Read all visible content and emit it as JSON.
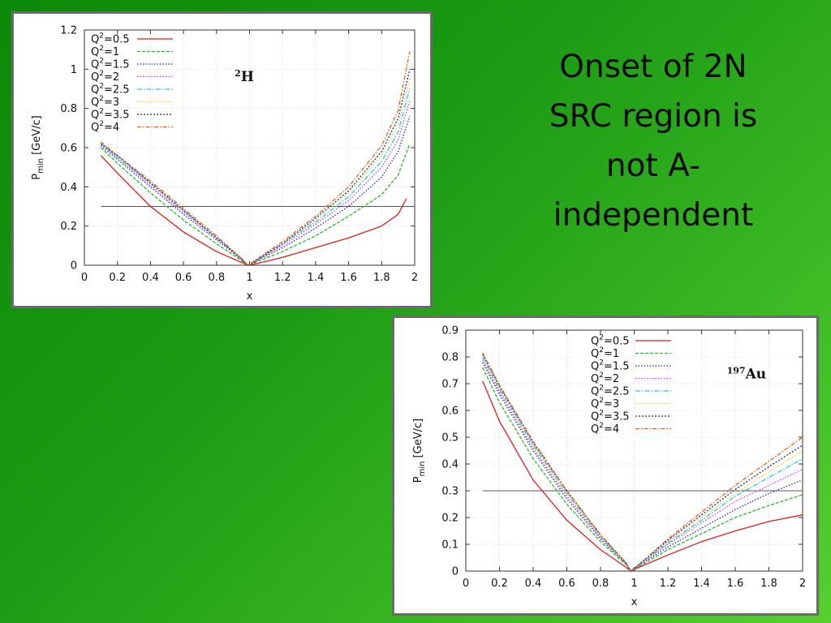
{
  "slide": {
    "title_lines": [
      "Onset of 2N",
      "SRC region is",
      "not  A-",
      "independent"
    ],
    "background_colors": [
      "#0a8a08",
      "#57cf2f"
    ],
    "title_color": "#0a0a0a"
  },
  "chart_data": [
    {
      "type": "line",
      "title": "",
      "xlabel": "x",
      "ylabel": "P",
      "ylabel_sub": "min",
      "ylabel_unit": " [GeV/c]",
      "xlim": [
        0,
        2
      ],
      "ylim": [
        0,
        1.2
      ],
      "xticks": [
        0,
        0.2,
        0.4,
        0.6,
        0.8,
        1,
        1.2,
        1.4,
        1.6,
        1.8,
        2
      ],
      "yticks": [
        0,
        0.2,
        0.4,
        0.6,
        0.8,
        1,
        1.2
      ],
      "grid": true,
      "legend_position": "top-left",
      "annotation": {
        "sup": "2",
        "text": "H",
        "x": 0.91,
        "y": 0.94
      },
      "reference_line": {
        "y": 0.3,
        "x_range": [
          0.1,
          2
        ]
      },
      "series": [
        {
          "name": "Q²=0.5",
          "color": "#e41a1c",
          "dash": "",
          "x": [
            0.1,
            0.2,
            0.4,
            0.6,
            0.8,
            0.95,
            0.99,
            1.05,
            1.2,
            1.4,
            1.6,
            1.8,
            1.9,
            1.95
          ],
          "y": [
            0.56,
            0.47,
            0.3,
            0.17,
            0.07,
            0.015,
            0,
            0.01,
            0.04,
            0.09,
            0.14,
            0.2,
            0.26,
            0.34
          ]
        },
        {
          "name": "Q²=1",
          "color": "#22bb22",
          "dash": "4,2",
          "x": [
            0.1,
            0.2,
            0.4,
            0.6,
            0.8,
            0.95,
            0.99,
            1.05,
            1.2,
            1.4,
            1.6,
            1.8,
            1.9,
            1.97
          ],
          "y": [
            0.6,
            0.52,
            0.37,
            0.23,
            0.11,
            0.025,
            0,
            0.02,
            0.07,
            0.15,
            0.25,
            0.36,
            0.46,
            0.62
          ]
        },
        {
          "name": "Q²=1.5",
          "color": "#2222cc",
          "dash": "1.5,2",
          "x": [
            0.1,
            0.2,
            0.4,
            0.6,
            0.8,
            0.95,
            0.99,
            1.05,
            1.2,
            1.4,
            1.6,
            1.8,
            1.9,
            1.97
          ],
          "y": [
            0.61,
            0.54,
            0.4,
            0.26,
            0.13,
            0.03,
            0,
            0.025,
            0.09,
            0.19,
            0.3,
            0.45,
            0.58,
            0.76
          ]
        },
        {
          "name": "Q²=2",
          "color": "#dd33dd",
          "dash": "1.5,2",
          "x": [
            0.1,
            0.2,
            0.4,
            0.6,
            0.8,
            0.95,
            0.99,
            1.05,
            1.2,
            1.4,
            1.6,
            1.8,
            1.9,
            1.97
          ],
          "y": [
            0.62,
            0.55,
            0.41,
            0.27,
            0.14,
            0.035,
            0,
            0.03,
            0.1,
            0.21,
            0.33,
            0.5,
            0.64,
            0.84
          ]
        },
        {
          "name": "Q²=2.5",
          "color": "#22c8e6",
          "dash": "6,2,1.5,2",
          "x": [
            0.1,
            0.2,
            0.4,
            0.6,
            0.8,
            0.95,
            0.99,
            1.05,
            1.2,
            1.4,
            1.6,
            1.8,
            1.9,
            1.97
          ],
          "y": [
            0.62,
            0.55,
            0.42,
            0.28,
            0.14,
            0.035,
            0,
            0.03,
            0.11,
            0.22,
            0.35,
            0.53,
            0.68,
            0.9
          ]
        },
        {
          "name": "Q²=3",
          "color": "#e8d21a",
          "dash": "1.5,2",
          "x": [
            0.1,
            0.2,
            0.4,
            0.6,
            0.8,
            0.95,
            0.99,
            1.05,
            1.2,
            1.4,
            1.6,
            1.8,
            1.9,
            1.97
          ],
          "y": [
            0.62,
            0.56,
            0.42,
            0.28,
            0.14,
            0.035,
            0,
            0.03,
            0.11,
            0.23,
            0.37,
            0.56,
            0.72,
            0.95
          ]
        },
        {
          "name": "Q²=3.5",
          "color": "#1a2a8c",
          "dash": "2,2",
          "x": [
            0.1,
            0.2,
            0.4,
            0.6,
            0.8,
            0.95,
            0.99,
            1.05,
            1.2,
            1.4,
            1.6,
            1.8,
            1.9,
            1.97
          ],
          "y": [
            0.62,
            0.56,
            0.42,
            0.28,
            0.14,
            0.035,
            0,
            0.03,
            0.11,
            0.24,
            0.38,
            0.58,
            0.75,
            1.0
          ]
        },
        {
          "name": "Q²=4",
          "color": "#e0601a",
          "dash": "5,2,1.5,2",
          "x": [
            0.1,
            0.2,
            0.4,
            0.6,
            0.8,
            0.95,
            0.99,
            1.05,
            1.2,
            1.4,
            1.6,
            1.8,
            1.9,
            1.97
          ],
          "y": [
            0.63,
            0.56,
            0.43,
            0.29,
            0.15,
            0.035,
            0,
            0.035,
            0.12,
            0.25,
            0.4,
            0.61,
            0.79,
            1.09
          ]
        }
      ]
    },
    {
      "type": "line",
      "title": "",
      "xlabel": "x",
      "ylabel": "P",
      "ylabel_sub": "min",
      "ylabel_unit": " [GeV/c]",
      "xlim": [
        0,
        2
      ],
      "ylim": [
        0,
        0.9
      ],
      "xticks": [
        0,
        0.2,
        0.4,
        0.6,
        0.8,
        1,
        1.2,
        1.4,
        1.6,
        1.8,
        2
      ],
      "yticks": [
        0,
        0.1,
        0.2,
        0.3,
        0.4,
        0.5,
        0.6,
        0.7,
        0.8,
        0.9
      ],
      "grid": true,
      "legend_position": "top-right",
      "annotation": {
        "sup": "197",
        "text": "Au",
        "x": 1.55,
        "y": 0.72
      },
      "reference_line": {
        "y": 0.3,
        "x_range": [
          0.1,
          2
        ]
      },
      "series": [
        {
          "name": "Q²=0.5",
          "color": "#e41a1c",
          "dash": "",
          "x": [
            0.1,
            0.2,
            0.4,
            0.6,
            0.8,
            0.95,
            0.98,
            1.05,
            1.2,
            1.4,
            1.6,
            1.8,
            2.0
          ],
          "y": [
            0.71,
            0.56,
            0.34,
            0.19,
            0.08,
            0.015,
            0,
            0.02,
            0.06,
            0.11,
            0.15,
            0.185,
            0.21
          ]
        },
        {
          "name": "Q²=1",
          "color": "#22bb22",
          "dash": "4,2",
          "x": [
            0.1,
            0.2,
            0.4,
            0.6,
            0.8,
            0.95,
            0.98,
            1.05,
            1.2,
            1.4,
            1.6,
            1.8,
            2.0
          ],
          "y": [
            0.76,
            0.63,
            0.42,
            0.25,
            0.11,
            0.025,
            0,
            0.025,
            0.08,
            0.14,
            0.2,
            0.245,
            0.285
          ]
        },
        {
          "name": "Q²=1.5",
          "color": "#2222cc",
          "dash": "1.5,2",
          "x": [
            0.1,
            0.2,
            0.4,
            0.6,
            0.8,
            0.95,
            0.98,
            1.05,
            1.2,
            1.4,
            1.6,
            1.8,
            2.0
          ],
          "y": [
            0.78,
            0.66,
            0.45,
            0.27,
            0.12,
            0.028,
            0,
            0.03,
            0.09,
            0.16,
            0.23,
            0.29,
            0.34
          ]
        },
        {
          "name": "Q²=2",
          "color": "#dd33dd",
          "dash": "1.5,2",
          "x": [
            0.1,
            0.2,
            0.4,
            0.6,
            0.8,
            0.95,
            0.98,
            1.05,
            1.2,
            1.4,
            1.6,
            1.8,
            2.0
          ],
          "y": [
            0.79,
            0.67,
            0.46,
            0.28,
            0.125,
            0.03,
            0,
            0.032,
            0.1,
            0.18,
            0.26,
            0.32,
            0.38
          ]
        },
        {
          "name": "Q²=2.5",
          "color": "#22c8e6",
          "dash": "6,2,1.5,2",
          "x": [
            0.1,
            0.2,
            0.4,
            0.6,
            0.8,
            0.95,
            0.98,
            1.05,
            1.2,
            1.4,
            1.6,
            1.8,
            2.0
          ],
          "y": [
            0.8,
            0.68,
            0.47,
            0.29,
            0.13,
            0.03,
            0,
            0.034,
            0.105,
            0.19,
            0.28,
            0.35,
            0.42
          ]
        },
        {
          "name": "Q²=3",
          "color": "#e8d21a",
          "dash": "1.5,2",
          "x": [
            0.1,
            0.2,
            0.4,
            0.6,
            0.8,
            0.95,
            0.98,
            1.05,
            1.2,
            1.4,
            1.6,
            1.8,
            2.0
          ],
          "y": [
            0.805,
            0.685,
            0.475,
            0.295,
            0.13,
            0.03,
            0,
            0.035,
            0.11,
            0.2,
            0.29,
            0.37,
            0.45
          ]
        },
        {
          "name": "Q²=3.5",
          "color": "#1a2a8c",
          "dash": "2,2",
          "x": [
            0.1,
            0.2,
            0.4,
            0.6,
            0.8,
            0.95,
            0.98,
            1.05,
            1.2,
            1.4,
            1.6,
            1.8,
            2.0
          ],
          "y": [
            0.81,
            0.69,
            0.48,
            0.3,
            0.135,
            0.032,
            0,
            0.036,
            0.115,
            0.21,
            0.305,
            0.39,
            0.47
          ]
        },
        {
          "name": "Q²=4",
          "color": "#e0601a",
          "dash": "5,2,1.5,2",
          "x": [
            0.1,
            0.2,
            0.4,
            0.6,
            0.8,
            0.95,
            0.98,
            1.05,
            1.2,
            1.4,
            1.6,
            1.8,
            2.0
          ],
          "y": [
            0.815,
            0.695,
            0.485,
            0.3,
            0.135,
            0.032,
            0,
            0.037,
            0.12,
            0.22,
            0.32,
            0.41,
            0.5
          ]
        }
      ]
    }
  ]
}
